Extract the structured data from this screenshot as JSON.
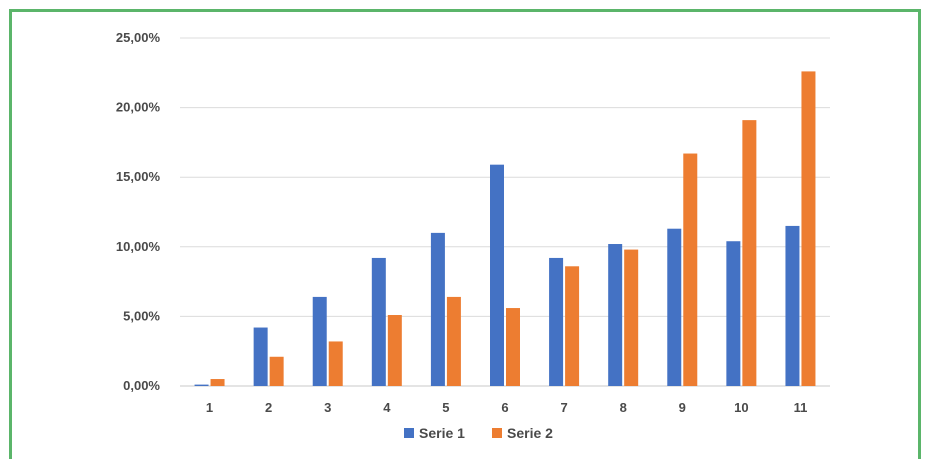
{
  "chart_data": {
    "type": "bar",
    "categories": [
      "1",
      "2",
      "3",
      "4",
      "5",
      "6",
      "7",
      "8",
      "9",
      "10",
      "11"
    ],
    "series": [
      {
        "name": "Serie 1",
        "color": "#4472c4",
        "values": [
          0.1,
          4.2,
          6.4,
          9.2,
          11.0,
          15.9,
          9.2,
          10.2,
          11.3,
          10.4,
          11.5
        ]
      },
      {
        "name": "Serie 2",
        "color": "#ed7d31",
        "values": [
          0.5,
          2.1,
          3.2,
          5.1,
          6.4,
          5.6,
          8.6,
          9.8,
          16.7,
          19.1,
          22.6
        ]
      }
    ],
    "yticks": [
      "0,00%",
      "5,00%",
      "10,00%",
      "15,00%",
      "20,00%",
      "25,00%"
    ],
    "ylim": [
      0,
      25
    ],
    "grid": true,
    "legend": "bottom"
  }
}
